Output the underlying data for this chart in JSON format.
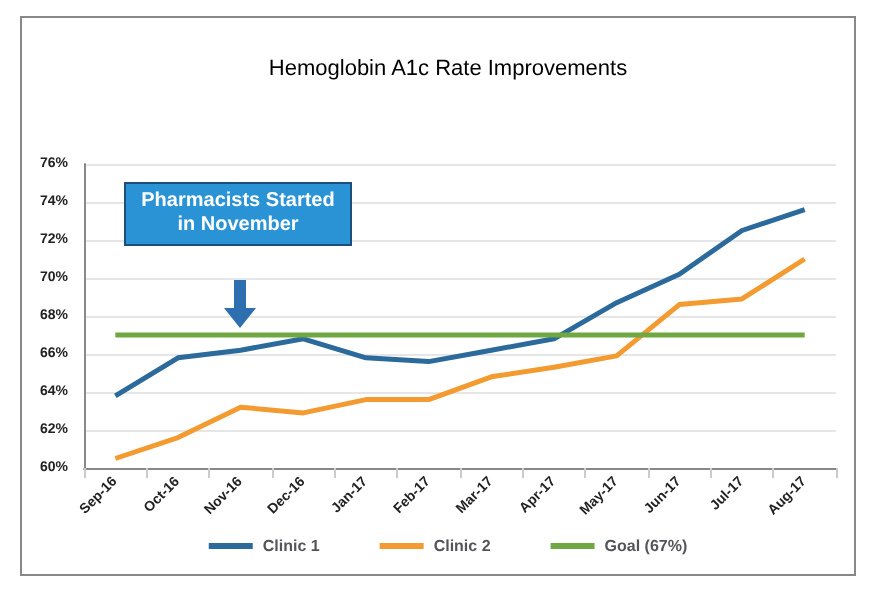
{
  "chart_data": {
    "type": "line",
    "title": "Hemoglobin A1c Rate Improvements",
    "categories": [
      "Sep-16",
      "Oct-16",
      "Nov-16",
      "Dec-16",
      "Jan-17",
      "Feb-17",
      "Mar-17",
      "Apr-17",
      "May-17",
      "Jun-17",
      "Jul-17",
      "Aug-17"
    ],
    "series": [
      {
        "name": "Clinic 1",
        "color": "#2b6a9b",
        "values": [
          63.8,
          65.8,
          66.2,
          66.8,
          65.8,
          65.6,
          66.2,
          66.8,
          68.7,
          70.2,
          72.5,
          73.6
        ]
      },
      {
        "name": "Clinic 2",
        "color": "#f39a30",
        "values": [
          60.5,
          61.6,
          63.2,
          62.9,
          63.6,
          63.6,
          64.8,
          65.3,
          65.9,
          68.6,
          68.9,
          71.0
        ]
      },
      {
        "name": "Goal (67%)",
        "color": "#6fa843",
        "values": [
          67,
          67,
          67,
          67,
          67,
          67,
          67,
          67,
          67,
          67,
          67,
          67
        ]
      }
    ],
    "ylim": [
      60,
      76
    ],
    "yticks": [
      {
        "value": 60,
        "label": "60%"
      },
      {
        "value": 62,
        "label": "62%"
      },
      {
        "value": 64,
        "label": "64%"
      },
      {
        "value": 66,
        "label": "66%"
      },
      {
        "value": 68,
        "label": "68%"
      },
      {
        "value": 70,
        "label": "70%"
      },
      {
        "value": 72,
        "label": "72%"
      },
      {
        "value": 74,
        "label": "74%"
      },
      {
        "value": 76,
        "label": "76%"
      }
    ],
    "annotations": [
      "Pharmacists Started in November"
    ],
    "grid": "y",
    "legend": "bottom",
    "marker": "none",
    "line_style": "solid"
  }
}
